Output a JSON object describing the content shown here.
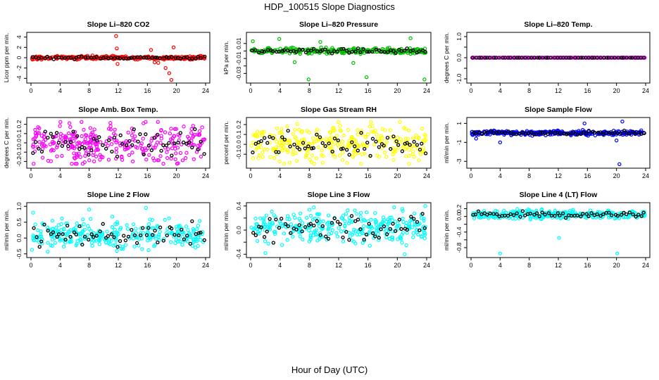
{
  "figure": {
    "title": "HDP_100515  Slope Diagnostics",
    "xlabel": "Hour of Day (UTC)"
  },
  "chart_data": [
    {
      "type": "scatter",
      "title": "Slope Li–820 CO2",
      "ylabel": "Licor ppm per min.",
      "color": "#ff0000",
      "xlim": [
        0,
        24
      ],
      "ylim": [
        -4.5,
        4.5
      ],
      "yticks": [
        -4,
        -2,
        0,
        2,
        4
      ],
      "ytick_labels": [
        "-4",
        "-2",
        "0",
        "2",
        "4"
      ],
      "xticks": [
        0,
        4,
        8,
        12,
        16,
        20,
        24
      ],
      "spread": 0.35,
      "center": 0,
      "outliers": [
        [
          11.7,
          4.2
        ],
        [
          11.8,
          1.8
        ],
        [
          11.9,
          -1.2
        ],
        [
          16.5,
          1.5
        ],
        [
          17.5,
          -1.0
        ],
        [
          18.5,
          -2.0
        ],
        [
          19.0,
          -3.0
        ],
        [
          19.3,
          -4.3
        ],
        [
          19.6,
          2.0
        ],
        [
          17.0,
          -0.9
        ]
      ]
    },
    {
      "type": "scatter",
      "title": "Slope Li–820 Pressure",
      "ylabel": "kPa per min.",
      "color": "#00c000",
      "xlim": [
        0,
        24
      ],
      "ylim": [
        -0.04,
        0.022
      ],
      "yticks": [
        -0.03,
        -0.02,
        -0.01,
        0.0,
        0.01
      ],
      "ytick_labels": [
        "-0.03",
        "",
        "-0.01",
        "",
        "0.01"
      ],
      "xticks": [
        0,
        4,
        8,
        12,
        16,
        20,
        24
      ],
      "spread": 0.004,
      "center": 0,
      "outliers": [
        [
          7.9,
          -0.038
        ],
        [
          15.8,
          -0.035
        ],
        [
          23.7,
          -0.038
        ],
        [
          0.3,
          0.013
        ],
        [
          3.9,
          0.016
        ],
        [
          21.8,
          0.017
        ],
        [
          9.5,
          0.012
        ],
        [
          6.0,
          -0.015
        ],
        [
          14.0,
          -0.016
        ]
      ]
    },
    {
      "type": "scatter",
      "title": "Slope Li–820 Temp.",
      "ylabel": "degrees C per min.",
      "color": "#ff00ff",
      "xlim": [
        0,
        24
      ],
      "ylim": [
        -1.1,
        1.1
      ],
      "yticks": [
        -1.0,
        -0.5,
        0.0,
        0.5,
        1.0
      ],
      "ytick_labels": [
        "-1.0",
        "",
        "0.0",
        "",
        "1.0"
      ],
      "xticks": [
        0,
        4,
        8,
        12,
        16,
        20,
        24
      ],
      "spread": 0.0,
      "center": 0,
      "outliers": []
    },
    {
      "type": "scatter",
      "title": "Slope Amb. Box Temp.",
      "ylabel": "degrees C per min.",
      "color": "#ff00ff",
      "xlim": [
        0,
        24
      ],
      "ylim": [
        -0.25,
        0.25
      ],
      "yticks": [
        -0.2,
        -0.1,
        0.0,
        0.1,
        0.2
      ],
      "ytick_labels": [
        "-0.2",
        "-0.1",
        "0.0",
        "0.1",
        "0.2"
      ],
      "xticks": [
        0,
        4,
        8,
        12,
        16,
        20,
        24
      ],
      "spread": 0.22,
      "center": 0,
      "outliers": []
    },
    {
      "type": "scatter",
      "title": "Slope Gas Stream RH",
      "ylabel": "percent per min.",
      "color": "#ffff00",
      "xlim": [
        0,
        24
      ],
      "ylim": [
        -0.22,
        0.25
      ],
      "yticks": [
        -0.1,
        0.0,
        0.1,
        0.2
      ],
      "ytick_labels": [
        "-0.1",
        "0.0",
        "0.1",
        "0.2"
      ],
      "xticks": [
        0,
        4,
        8,
        12,
        16,
        20,
        24
      ],
      "spread": 0.2,
      "center": 0,
      "outliers": []
    },
    {
      "type": "scatter",
      "title": "Slope Sample Flow",
      "ylabel": "ml/min per min.",
      "color": "#0000ff",
      "xlim": [
        0,
        24
      ],
      "ylim": [
        -3.5,
        1.4
      ],
      "yticks": [
        -3,
        -1,
        1
      ],
      "ytick_labels": [
        "-3",
        "-1",
        "1"
      ],
      "xticks": [
        0,
        4,
        8,
        12,
        16,
        20,
        24
      ],
      "spread": 0.25,
      "center": 0,
      "outliers": [
        [
          20.4,
          -3.3
        ],
        [
          4.0,
          -1.0
        ],
        [
          15.6,
          1.0
        ],
        [
          20.0,
          -0.8
        ],
        [
          20.8,
          1.2
        ],
        [
          0.7,
          -0.6
        ]
      ]
    },
    {
      "type": "scatter",
      "title": "Slope Line 2 Flow",
      "ylabel": "ml/min per min.",
      "color": "#00ffff",
      "xlim": [
        0,
        24
      ],
      "ylim": [
        -0.55,
        1.05
      ],
      "yticks": [
        -0.5,
        0.0,
        0.5,
        1.0
      ],
      "ytick_labels": [
        "-0.5",
        "0.0",
        "0.5",
        "1.0"
      ],
      "xticks": [
        0,
        4,
        8,
        12,
        16,
        20,
        24
      ],
      "spread": 0.5,
      "center": 0.1,
      "outliers": [
        [
          15.8,
          0.95
        ],
        [
          0.3,
          0.8
        ],
        [
          8.0,
          0.9
        ]
      ]
    },
    {
      "type": "scatter",
      "title": "Slope Line 3 Flow",
      "ylabel": "ml/min per min.",
      "color": "#00ffff",
      "xlim": [
        0,
        24
      ],
      "ylim": [
        -0.42,
        0.42
      ],
      "yticks": [
        -0.4,
        -0.2,
        0.0,
        0.2,
        0.4
      ],
      "ytick_labels": [
        "-0.4",
        "",
        "0.0",
        "",
        "0.4"
      ],
      "xticks": [
        0,
        4,
        8,
        12,
        16,
        20,
        24
      ],
      "spread": 0.28,
      "center": 0.05,
      "outliers": [
        [
          23.8,
          0.4
        ],
        [
          21.0,
          -0.4
        ],
        [
          2.0,
          -0.38
        ]
      ]
    },
    {
      "type": "scatter",
      "title": "Slope Line 4 (LT) Flow",
      "ylabel": "ml/min per min.",
      "color": "#00ffff",
      "xlim": [
        0,
        24
      ],
      "ylim": [
        -1.0,
        0.3
      ],
      "yticks": [
        -0.8,
        -0.6,
        -0.4,
        -0.2,
        0.0,
        0.2
      ],
      "ytick_labels": [
        "-0.8",
        "",
        "-0.4",
        "",
        "0.0",
        "0.2"
      ],
      "xticks": [
        0,
        4,
        8,
        12,
        16,
        20,
        24
      ],
      "spread": 0.12,
      "center": 0.05,
      "outliers": [
        [
          4.0,
          -0.95
        ],
        [
          20.1,
          -0.95
        ],
        [
          12.1,
          -0.55
        ]
      ]
    }
  ]
}
